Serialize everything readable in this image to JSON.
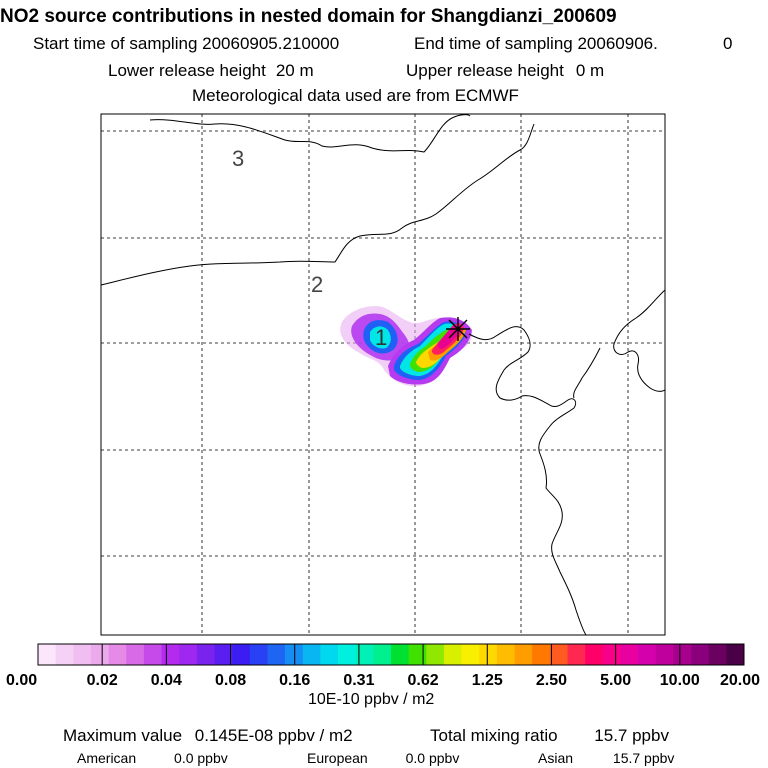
{
  "chart_data": {
    "type": "heatmap",
    "title": "NO2 source contributions in nested domain for Shangdianzi_200609",
    "header": {
      "start_label": "Start time of sampling 20060905.210000",
      "end_label": "End time of sampling 20060906.",
      "end_value": "0",
      "lower_label": "Lower release height",
      "lower_value": "20 m",
      "upper_label": "Upper release height",
      "upper_value": "0 m",
      "met_label": "Meteorological data used are from ECMWF"
    },
    "contour_labels": [
      "1",
      "2",
      "3"
    ],
    "colorbar": {
      "tick_labels": [
        "0.00",
        "0.02",
        "0.04",
        "0.08",
        "0.16",
        "0.31",
        "0.62",
        "1.25",
        "2.50",
        "5.00",
        "10.00",
        "20.00"
      ],
      "units": "10E-10 ppbv / m2",
      "colors": [
        "#fbe6fb",
        "#f5d2f5",
        "#f0bef0",
        "#ebaaeb",
        "#e58ae6",
        "#d96ae6",
        "#c64ae9",
        "#b32bee",
        "#9f28f0",
        "#7a22ee",
        "#5a1ff0",
        "#3b1cf2",
        "#2a40f4",
        "#1e66f2",
        "#148ef2",
        "#0ab6f2",
        "#00d8f0",
        "#00f0e0",
        "#00f0b8",
        "#00f090",
        "#00e030",
        "#40e000",
        "#90e800",
        "#d8f000",
        "#f8f000",
        "#ffd800",
        "#ffbc00",
        "#ff9c00",
        "#ff7800",
        "#ff5a20",
        "#ff2850",
        "#ff0068",
        "#f8008a",
        "#e800a0",
        "#d400ac",
        "#c0009c",
        "#a6008c",
        "#8a007c",
        "#6a0060",
        "#4a0046"
      ]
    },
    "plume": [
      {
        "level": "low",
        "color": "#e6a8f0"
      },
      {
        "level": "mid",
        "color": "#b53af0"
      },
      {
        "level": "blue",
        "color": "#2060f4"
      },
      {
        "level": "cyan",
        "color": "#00e6e6"
      },
      {
        "level": "green",
        "color": "#40e000"
      },
      {
        "level": "yellow",
        "color": "#ffd800"
      },
      {
        "level": "orange",
        "color": "#ff9c00"
      },
      {
        "level": "red",
        "color": "#ff2060"
      },
      {
        "level": "magenta",
        "color": "#e80090"
      }
    ],
    "footer": {
      "max_label": "Maximum value",
      "max_value": "0.145E-08 ppbv / m2",
      "total_label": "Total mixing ratio",
      "total_value": "15.7 ppbv",
      "american_label": "American",
      "american_value": "0.0 ppbv",
      "european_label": "European",
      "european_value": "0.0 ppbv",
      "asian_label": "Asian",
      "asian_value": "15.7 ppbv"
    }
  }
}
